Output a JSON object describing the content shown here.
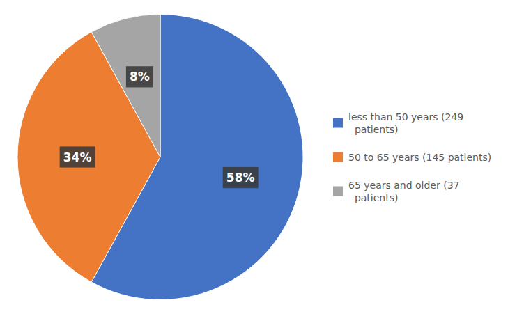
{
  "chart_data": {
    "type": "pie",
    "categories": [
      "less than 50 years (249\n  patients)",
      "50 to 65 years (145 patients)",
      "65 years and older (37\n  patients)"
    ],
    "values": [
      58,
      34,
      8
    ],
    "value_labels": [
      "58%",
      "34%",
      "8%"
    ],
    "colors": [
      "#4472C4",
      "#ED7D31",
      "#A5A5A5"
    ],
    "data_labels": true,
    "legend": "right"
  }
}
